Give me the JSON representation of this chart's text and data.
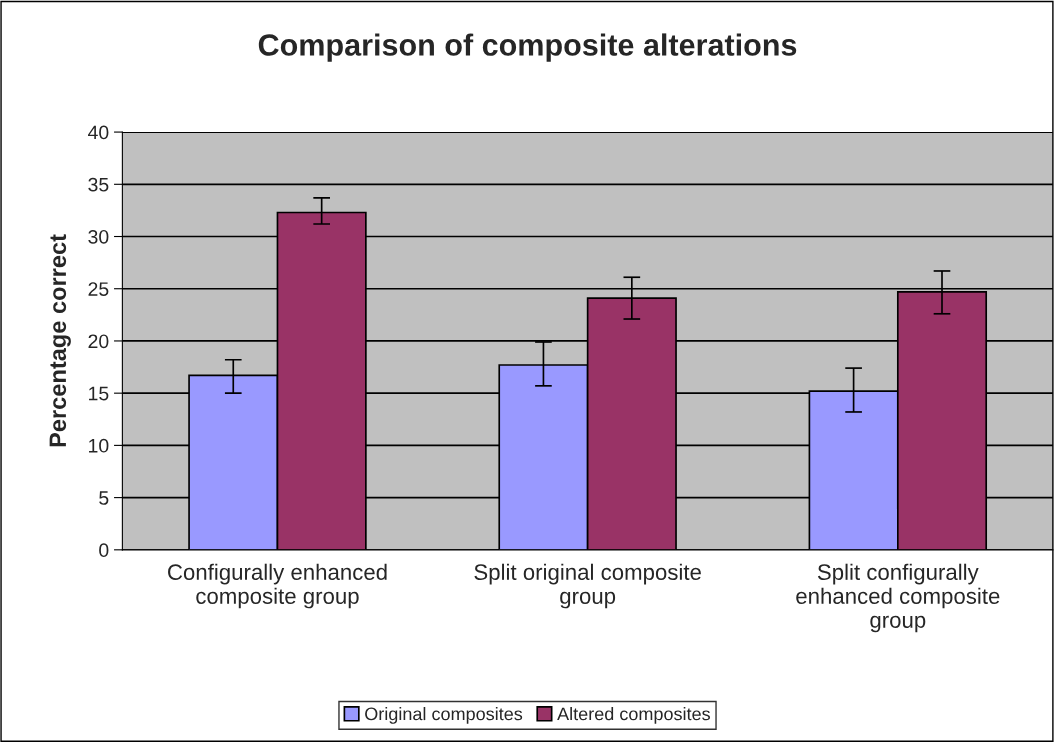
{
  "chart_data": {
    "type": "bar",
    "title": "Comparison of composite alterations",
    "ylabel": "Percentage correct",
    "categories": [
      "Configurally enhanced\ncomposite group",
      "Split original composite\ngroup",
      "Split configurally\nenhanced composite\ngroup"
    ],
    "series": [
      {
        "name": "Original composites",
        "color": "#9999ff",
        "values": [
          16.7,
          17.7,
          15.2
        ],
        "errors": [
          [
            15.0,
            18.2
          ],
          [
            15.7,
            19.9
          ],
          [
            13.2,
            17.4
          ]
        ]
      },
      {
        "name": "Altered composites",
        "color": "#993366",
        "values": [
          32.3,
          24.1,
          24.7
        ],
        "errors": [
          [
            31.2,
            33.7
          ],
          [
            22.1,
            26.1
          ],
          [
            22.6,
            26.7
          ]
        ]
      }
    ],
    "ylim": [
      0,
      40
    ],
    "yticks": [
      0,
      5,
      10,
      15,
      20,
      25,
      30,
      35,
      40
    ],
    "grid": "y",
    "legend": "bottom"
  }
}
